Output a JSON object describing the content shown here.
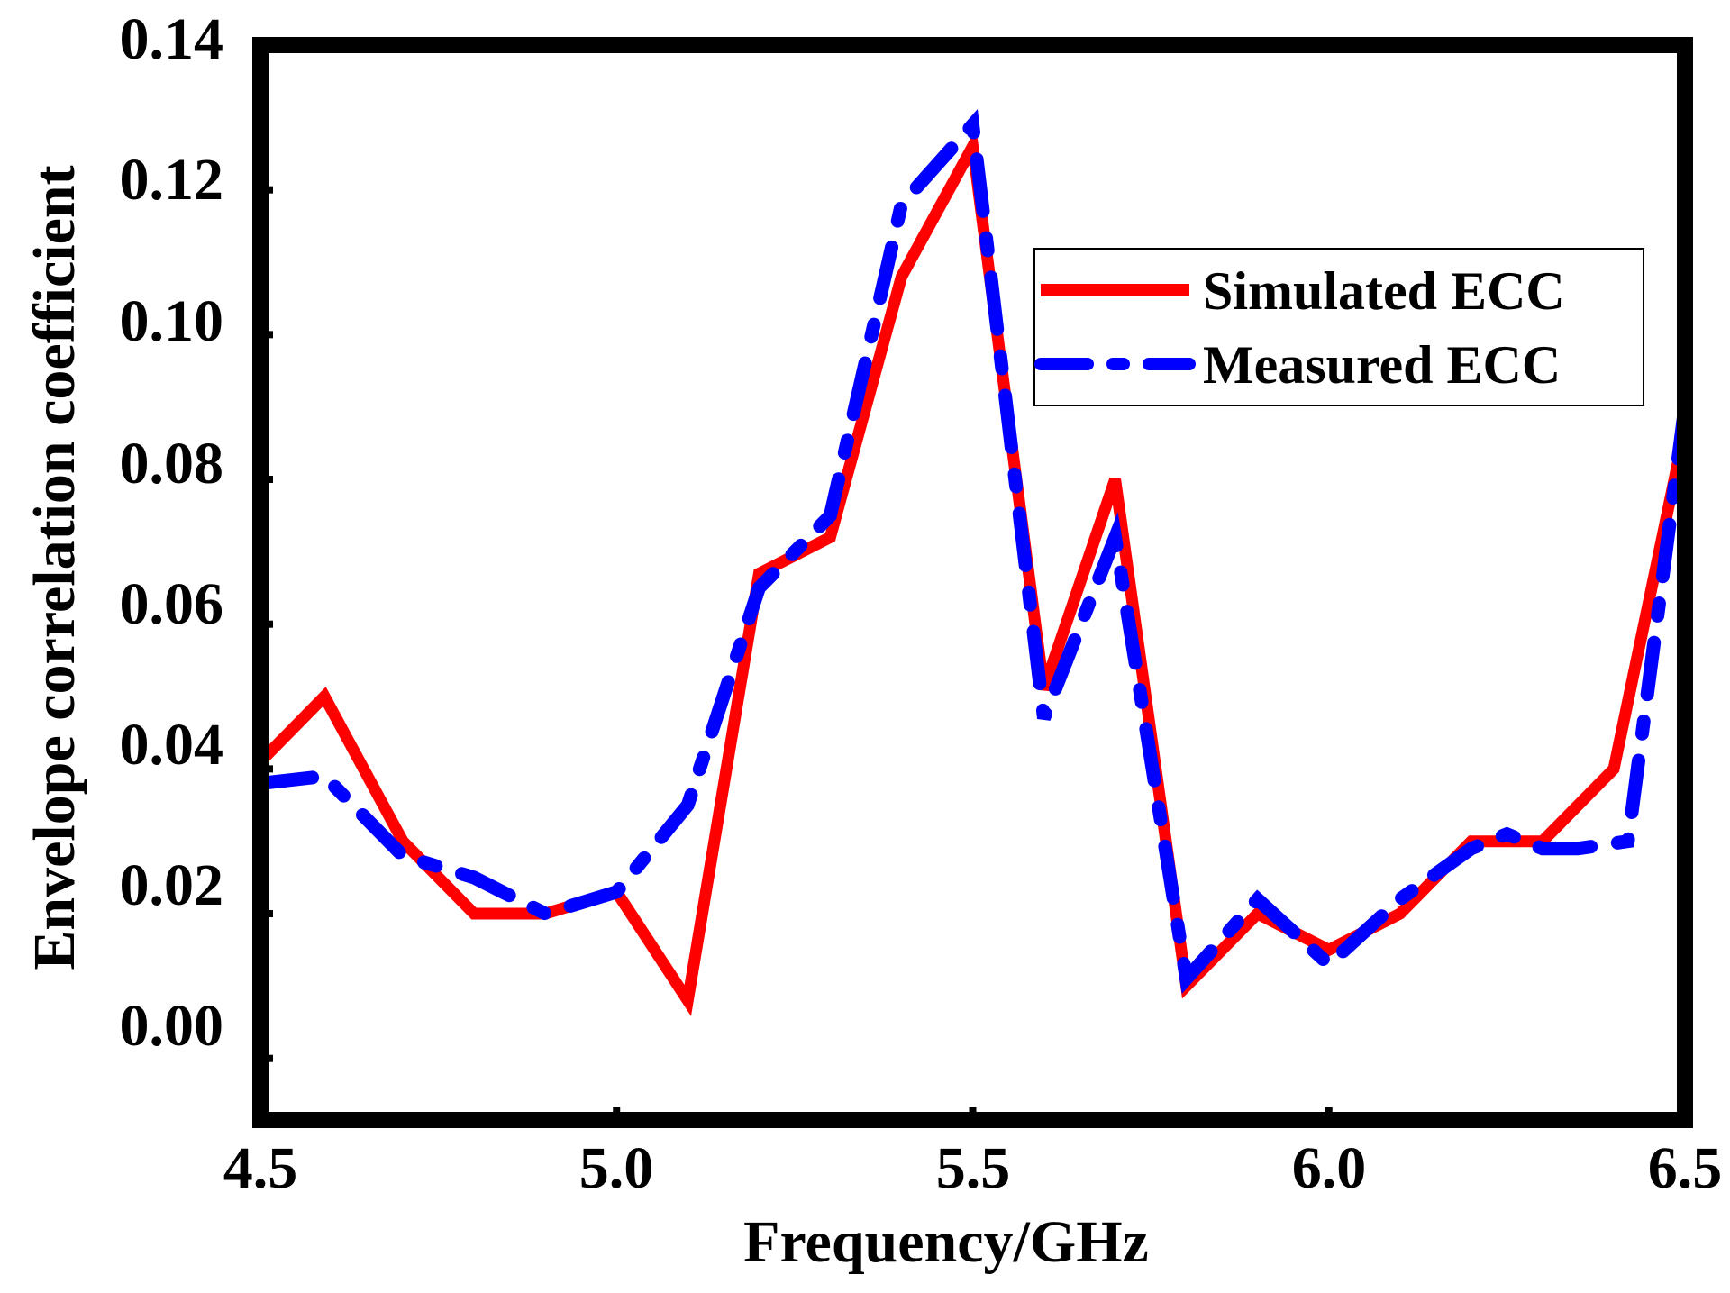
{
  "chart_data": {
    "type": "line",
    "title": "",
    "xlabel": "Frequency/GHz",
    "ylabel": "Envelope correlation coefficient",
    "xlim": [
      4.5,
      6.5
    ],
    "ylim": [
      -0.0085,
      0.14
    ],
    "x_ticks": [
      4.5,
      5.0,
      5.5,
      6.0,
      6.5
    ],
    "x_tick_labels": [
      "4.5",
      "5.0",
      "5.5",
      "6.0",
      "6.5"
    ],
    "y_ticks": [
      0.0,
      0.02,
      0.04,
      0.06,
      0.08,
      0.1,
      0.12,
      0.14
    ],
    "y_tick_labels": [
      "0.00",
      "0.02",
      "0.04",
      "0.06",
      "0.08",
      "0.10",
      "0.12",
      "0.14"
    ],
    "grid": false,
    "legend_position": "top-right",
    "series": [
      {
        "name": "Simulated ECC",
        "color": "#ff0000",
        "style": "solid",
        "x": [
          4.5,
          4.59,
          4.7,
          4.8,
          4.9,
          5.0,
          5.1,
          5.2,
          5.3,
          5.4,
          5.5,
          5.6,
          5.7,
          5.8,
          5.9,
          6.0,
          6.1,
          6.2,
          6.3,
          6.4,
          6.5
        ],
        "y": [
          0.041,
          0.05,
          0.03,
          0.02,
          0.02,
          0.023,
          0.008,
          0.067,
          0.072,
          0.108,
          0.126,
          0.051,
          0.08,
          0.01,
          0.02,
          0.015,
          0.02,
          0.03,
          0.03,
          0.04,
          0.087
        ]
      },
      {
        "name": "Measured ECC",
        "color": "#0000ff",
        "style": "dashed",
        "x": [
          4.5,
          4.59,
          4.7,
          4.8,
          4.9,
          5.0,
          5.1,
          5.2,
          5.3,
          5.4,
          5.5,
          5.6,
          5.7,
          5.8,
          5.9,
          6.0,
          6.1,
          6.2,
          6.25,
          6.3,
          6.35,
          6.42,
          6.5
        ],
        "y": [
          0.038,
          0.039,
          0.028,
          0.025,
          0.02,
          0.023,
          0.035,
          0.065,
          0.075,
          0.118,
          0.129,
          0.047,
          0.072,
          0.011,
          0.022,
          0.013,
          0.022,
          0.029,
          0.031,
          0.029,
          0.029,
          0.03,
          0.09
        ]
      }
    ]
  }
}
